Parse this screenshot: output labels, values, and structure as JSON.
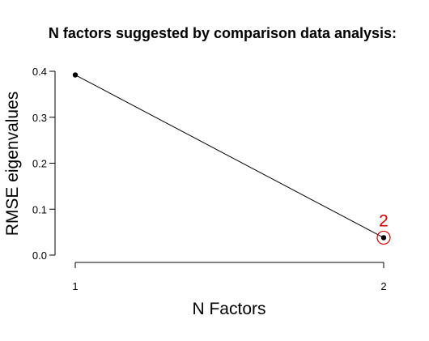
{
  "chart_data": {
    "type": "line",
    "title": "N factors suggested by comparison data analysis:",
    "xlabel": "N Factors",
    "ylabel": "RMSE eigenvalues",
    "x": [
      1,
      2
    ],
    "x_ticks": [
      "1",
      "2"
    ],
    "y_ticks": [
      "0.0",
      "0.1",
      "0.2",
      "0.3",
      "0.4"
    ],
    "xlim": [
      1,
      2
    ],
    "ylim": [
      0,
      0.4
    ],
    "series": [
      {
        "values": [
          0.392,
          0.038
        ]
      }
    ],
    "annotation": {
      "x": 2,
      "y": 0.038,
      "label": "2",
      "color": "#cc0000"
    },
    "line_color": "#000000",
    "grid": false,
    "legend": "none"
  }
}
